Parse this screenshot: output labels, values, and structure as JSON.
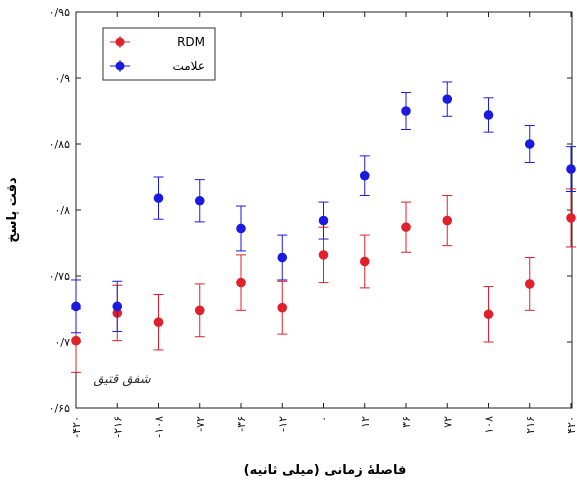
{
  "chart_data": {
    "type": "scatter",
    "xlabel": "فاصلهٔ زمانی (میلی ثانیه)",
    "ylabel": "دقت پاسخ",
    "categories": [
      "-۴۲۰",
      "-۲۱۶",
      "-۱۰۸",
      "-۷۲",
      "-۳۶",
      "-۱۲",
      "۰",
      "۱۲",
      "۳۶",
      "۷۲",
      "۱۰۸",
      "۲۱۶",
      "۴۲۰"
    ],
    "ylim": [
      0.65,
      0.95
    ],
    "yticks": [
      {
        "value": 0.65,
        "label": "۰/۶۵"
      },
      {
        "value": 0.7,
        "label": "۰/۷"
      },
      {
        "value": 0.75,
        "label": "۰/۷۵"
      },
      {
        "value": 0.8,
        "label": "۰/۸"
      },
      {
        "value": 0.85,
        "label": "۰/۸۵"
      },
      {
        "value": 0.9,
        "label": "۰/۹"
      },
      {
        "value": 0.95,
        "label": "۰/۹۵"
      }
    ],
    "legend_position": "top-left",
    "grid": false,
    "series": [
      {
        "name": "RDM",
        "color": "#e0202a",
        "values": [
          0.701,
          0.722,
          0.715,
          0.724,
          0.745,
          0.726,
          0.766,
          0.761,
          0.787,
          0.792,
          0.721,
          0.744,
          0.794
        ],
        "errors": [
          0.024,
          0.021,
          0.021,
          0.02,
          0.021,
          0.02,
          0.021,
          0.02,
          0.019,
          0.019,
          0.021,
          0.02,
          0.022
        ]
      },
      {
        "name": "علامت",
        "color": "#1a1ae0",
        "values": [
          0.727,
          0.727,
          0.809,
          0.807,
          0.786,
          0.764,
          0.792,
          0.826,
          0.875,
          0.884,
          0.872,
          0.85,
          0.831
        ],
        "errors": [
          0.02,
          0.019,
          0.016,
          0.016,
          0.017,
          0.017,
          0.014,
          0.015,
          0.014,
          0.013,
          0.013,
          0.014,
          0.017
        ]
      }
    ]
  },
  "signature_text": "شفق قتیق"
}
